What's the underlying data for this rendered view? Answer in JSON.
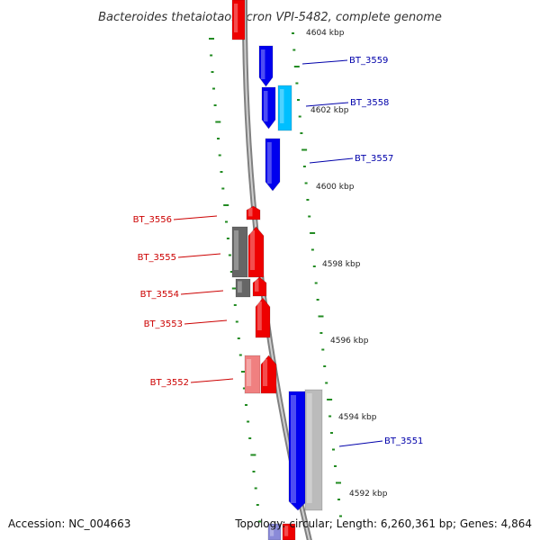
{
  "title": "Bacteroides thetaiotaomicron VPI-5482, complete genome",
  "footer": {
    "accession": "Accession: NC_004663",
    "topology": "Topology: circular; Length: 6,260,361 bp; Genes: 4,864"
  },
  "colors": {
    "backbone": "#808080",
    "forward_strand": "#0000ee",
    "forward_light": "#00bfff",
    "reverse_strand": "#ee0000",
    "reverse_light": "#f08080",
    "dark_gray": "#666666",
    "light_gray": "#bbbbbb",
    "tick_marks": "#228b22",
    "label_blue": "#0000aa",
    "label_red": "#cc0000"
  },
  "scale_ticks": [
    "4604 kbp",
    "4602 kbp",
    "4600 kbp",
    "4598 kbp",
    "4596 kbp",
    "4594 kbp",
    "4592 kbp"
  ],
  "gene_labels": [
    {
      "name": "BT_3559",
      "strand": "forward"
    },
    {
      "name": "BT_3558",
      "strand": "forward"
    },
    {
      "name": "BT_3557",
      "strand": "forward"
    },
    {
      "name": "BT_3556",
      "strand": "reverse"
    },
    {
      "name": "BT_3555",
      "strand": "reverse"
    },
    {
      "name": "BT_3554",
      "strand": "reverse"
    },
    {
      "name": "BT_3553",
      "strand": "reverse"
    },
    {
      "name": "BT_3552",
      "strand": "reverse"
    },
    {
      "name": "BT_3551",
      "strand": "forward"
    }
  ]
}
